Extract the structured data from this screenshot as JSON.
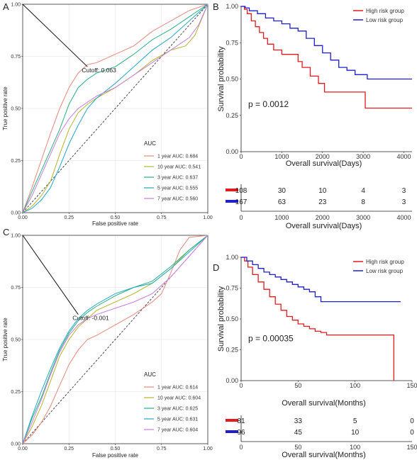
{
  "chart_data": [
    {
      "panel": "A",
      "type": "line",
      "xlabel": "False positive rate",
      "ylabel": "True positive rate",
      "xlim": [
        0,
        1
      ],
      "ylim": [
        0,
        1
      ],
      "xticks": [
        "0.00",
        "0.25",
        "0.50",
        "0.75",
        "1.00"
      ],
      "yticks": [
        "0.00",
        "0.25",
        "0.50",
        "0.75",
        "1.00"
      ],
      "legend_title": "AUC",
      "legend_position": "bottom-right",
      "annotation": "Cutoff: 0.063",
      "cutoff_point": [
        0.35,
        0.7
      ],
      "series": [
        {
          "name": "1 year AUC: 0.684",
          "color": "#E8877B",
          "x": [
            0,
            0.05,
            0.1,
            0.15,
            0.2,
            0.25,
            0.3,
            0.35,
            0.4,
            0.5,
            0.6,
            0.7,
            0.8,
            0.9,
            1
          ],
          "y": [
            0,
            0.12,
            0.25,
            0.38,
            0.5,
            0.6,
            0.67,
            0.71,
            0.72,
            0.76,
            0.8,
            0.87,
            0.92,
            0.97,
            1
          ]
        },
        {
          "name": "10 year AUC: 0.541",
          "color": "#B7B22A",
          "x": [
            0,
            0.05,
            0.1,
            0.15,
            0.2,
            0.25,
            0.3,
            0.35,
            0.4,
            0.5,
            0.6,
            0.7,
            0.8,
            0.88,
            0.93,
            1
          ],
          "y": [
            0,
            0.03,
            0.08,
            0.15,
            0.28,
            0.4,
            0.48,
            0.52,
            0.55,
            0.6,
            0.66,
            0.73,
            0.78,
            0.8,
            0.85,
            1
          ]
        },
        {
          "name": "3 year AUC: 0.637",
          "color": "#27B07D",
          "x": [
            0,
            0.05,
            0.1,
            0.15,
            0.2,
            0.25,
            0.3,
            0.35,
            0.4,
            0.5,
            0.6,
            0.7,
            0.8,
            0.9,
            1
          ],
          "y": [
            0,
            0.1,
            0.2,
            0.3,
            0.4,
            0.52,
            0.6,
            0.64,
            0.67,
            0.7,
            0.76,
            0.83,
            0.88,
            0.94,
            1
          ]
        },
        {
          "name": "5 year AUC: 0.555",
          "color": "#1FA8C9",
          "x": [
            0,
            0.05,
            0.1,
            0.15,
            0.2,
            0.25,
            0.3,
            0.35,
            0.4,
            0.5,
            0.6,
            0.7,
            0.8,
            0.9,
            1
          ],
          "y": [
            0,
            0.02,
            0.06,
            0.12,
            0.22,
            0.33,
            0.42,
            0.5,
            0.55,
            0.62,
            0.7,
            0.78,
            0.84,
            0.92,
            1
          ]
        },
        {
          "name": "7 year AUC: 0.560",
          "color": "#C77CDE",
          "x": [
            0,
            0.05,
            0.1,
            0.15,
            0.2,
            0.25,
            0.3,
            0.35,
            0.4,
            0.5,
            0.6,
            0.7,
            0.8,
            0.9,
            0.95,
            1
          ],
          "y": [
            0,
            0.08,
            0.18,
            0.28,
            0.38,
            0.45,
            0.5,
            0.53,
            0.56,
            0.6,
            0.66,
            0.72,
            0.78,
            0.84,
            0.9,
            1
          ]
        }
      ]
    },
    {
      "panel": "B",
      "type": "line",
      "xlabel": "Overall survival(Days)",
      "ylabel": "Survival probability",
      "xlim": [
        0,
        4200
      ],
      "ylim": [
        0,
        1
      ],
      "xticks": [
        "0",
        "1000",
        "2000",
        "3000",
        "4000"
      ],
      "yticks": [
        "0.00",
        "0.25",
        "0.50",
        "0.75",
        "1.00"
      ],
      "legend_position": "top-right",
      "pvalue": "p = 0.0012",
      "series": [
        {
          "name": "High risk group",
          "color": "#E41A1C",
          "x": [
            0,
            80,
            150,
            250,
            350,
            450,
            550,
            650,
            800,
            1000,
            1300,
            1400,
            1500,
            1700,
            1900,
            2050,
            2500,
            3000,
            3050,
            4200
          ],
          "y": [
            1,
            0.98,
            0.95,
            0.9,
            0.86,
            0.82,
            0.78,
            0.74,
            0.7,
            0.67,
            0.67,
            0.62,
            0.58,
            0.52,
            0.47,
            0.41,
            0.41,
            0.41,
            0.3,
            0.3
          ]
        },
        {
          "name": "Low risk group",
          "color": "#1F1FCC",
          "x": [
            0,
            100,
            200,
            400,
            600,
            800,
            1000,
            1200,
            1400,
            1600,
            1800,
            2000,
            2200,
            2400,
            2600,
            2800,
            3100,
            4200
          ],
          "y": [
            1,
            0.99,
            0.97,
            0.95,
            0.92,
            0.9,
            0.88,
            0.85,
            0.83,
            0.78,
            0.73,
            0.68,
            0.63,
            0.58,
            0.56,
            0.53,
            0.5,
            0.5
          ]
        }
      ],
      "risk_table": {
        "xlabel": "Overall survival(Days)",
        "xticks": [
          "0",
          "1000",
          "2000",
          "3000",
          "4000"
        ],
        "rows": [
          {
            "color": "#E41A1C",
            "values": [
              "108",
              "30",
              "10",
              "4",
              "3"
            ]
          },
          {
            "color": "#1F1FCC",
            "values": [
              "167",
              "63",
              "23",
              "8",
              "3"
            ]
          }
        ]
      }
    },
    {
      "panel": "C",
      "type": "line",
      "xlabel": "False positive rate",
      "ylabel": "True positive rate",
      "xlim": [
        0,
        1
      ],
      "ylim": [
        0,
        1
      ],
      "xticks": [
        "0.00",
        "0.25",
        "0.50",
        "0.75",
        "1.00"
      ],
      "yticks": [
        "0.00",
        "0.25",
        "0.50",
        "0.75",
        "1.00"
      ],
      "legend_title": "AUC",
      "legend_position": "bottom-right",
      "annotation": "Cutoff: -0.001",
      "cutoff_point": [
        0.3,
        0.62
      ],
      "series": [
        {
          "name": "1 year AUC: 0.614",
          "color": "#E8877B",
          "x": [
            0,
            0.05,
            0.1,
            0.15,
            0.2,
            0.25,
            0.3,
            0.35,
            0.4,
            0.5,
            0.6,
            0.7,
            0.75,
            0.8,
            0.85,
            0.9,
            1
          ],
          "y": [
            0,
            0.04,
            0.1,
            0.18,
            0.28,
            0.38,
            0.45,
            0.5,
            0.52,
            0.57,
            0.62,
            0.68,
            0.72,
            0.82,
            0.93,
            0.99,
            1
          ]
        },
        {
          "name": "10 year AUC: 0.604",
          "color": "#B7B22A",
          "x": [
            0,
            0.05,
            0.1,
            0.15,
            0.2,
            0.25,
            0.3,
            0.35,
            0.4,
            0.5,
            0.6,
            0.7,
            0.8,
            0.9,
            1
          ],
          "y": [
            0,
            0.08,
            0.18,
            0.3,
            0.42,
            0.5,
            0.56,
            0.6,
            0.64,
            0.68,
            0.72,
            0.77,
            0.84,
            0.93,
            1
          ]
        },
        {
          "name": "3 year AUC: 0.625",
          "color": "#27B07D",
          "x": [
            0,
            0.05,
            0.1,
            0.15,
            0.2,
            0.25,
            0.3,
            0.35,
            0.4,
            0.5,
            0.6,
            0.7,
            0.8,
            0.9,
            1
          ],
          "y": [
            0,
            0.12,
            0.22,
            0.34,
            0.45,
            0.53,
            0.59,
            0.63,
            0.66,
            0.71,
            0.75,
            0.78,
            0.85,
            0.93,
            1
          ]
        },
        {
          "name": "5 year AUC: 0.631",
          "color": "#1FA8C9",
          "x": [
            0,
            0.05,
            0.1,
            0.15,
            0.2,
            0.25,
            0.3,
            0.35,
            0.4,
            0.5,
            0.6,
            0.7,
            0.8,
            0.9,
            1
          ],
          "y": [
            0,
            0.13,
            0.25,
            0.36,
            0.46,
            0.54,
            0.6,
            0.64,
            0.67,
            0.72,
            0.75,
            0.77,
            0.84,
            0.92,
            1
          ]
        },
        {
          "name": "7 year AUC: 0.604",
          "color": "#C77CDE",
          "x": [
            0,
            0.05,
            0.1,
            0.15,
            0.2,
            0.25,
            0.3,
            0.35,
            0.4,
            0.5,
            0.6,
            0.7,
            0.8,
            0.9,
            1
          ],
          "y": [
            0,
            0.1,
            0.21,
            0.33,
            0.44,
            0.52,
            0.57,
            0.6,
            0.62,
            0.65,
            0.68,
            0.72,
            0.8,
            0.9,
            1
          ]
        }
      ]
    },
    {
      "panel": "D",
      "type": "line",
      "xlabel": "Overall survival(Months)",
      "ylabel": "Survival probability",
      "xlim": [
        0,
        150
      ],
      "ylim": [
        0,
        1
      ],
      "xticks": [
        "0",
        "50",
        "100",
        "150"
      ],
      "yticks": [
        "0.00",
        "0.25",
        "0.50",
        "0.75",
        "1.00"
      ],
      "legend_position": "top-right",
      "pvalue": "p = 0.00035",
      "series": [
        {
          "name": "High risk group",
          "color": "#E41A1C",
          "x": [
            0,
            3,
            6,
            10,
            15,
            20,
            25,
            30,
            35,
            40,
            45,
            50,
            55,
            60,
            65,
            70,
            75,
            80,
            100,
            120,
            134,
            134
          ],
          "y": [
            1,
            0.97,
            0.92,
            0.86,
            0.8,
            0.74,
            0.68,
            0.62,
            0.57,
            0.52,
            0.49,
            0.46,
            0.44,
            0.42,
            0.4,
            0.39,
            0.37,
            0.37,
            0.37,
            0.37,
            0.37,
            0.0
          ]
        },
        {
          "name": "Low risk group",
          "color": "#1F1FCC",
          "x": [
            0,
            5,
            10,
            15,
            20,
            25,
            30,
            35,
            40,
            45,
            50,
            55,
            60,
            65,
            70,
            100,
            140
          ],
          "y": [
            1,
            0.97,
            0.94,
            0.91,
            0.88,
            0.86,
            0.84,
            0.82,
            0.8,
            0.78,
            0.76,
            0.74,
            0.72,
            0.68,
            0.64,
            0.64,
            0.64
          ]
        }
      ],
      "risk_table": {
        "xlabel": "Overall survival(Months)",
        "xticks": [
          "0",
          "50",
          "100",
          "150"
        ],
        "rows": [
          {
            "color": "#E41A1C",
            "values": [
              "81",
              "33",
              "5",
              "0"
            ]
          },
          {
            "color": "#1F1FCC",
            "values": [
              "96",
              "45",
              "10",
              "0"
            ]
          }
        ]
      }
    }
  ]
}
